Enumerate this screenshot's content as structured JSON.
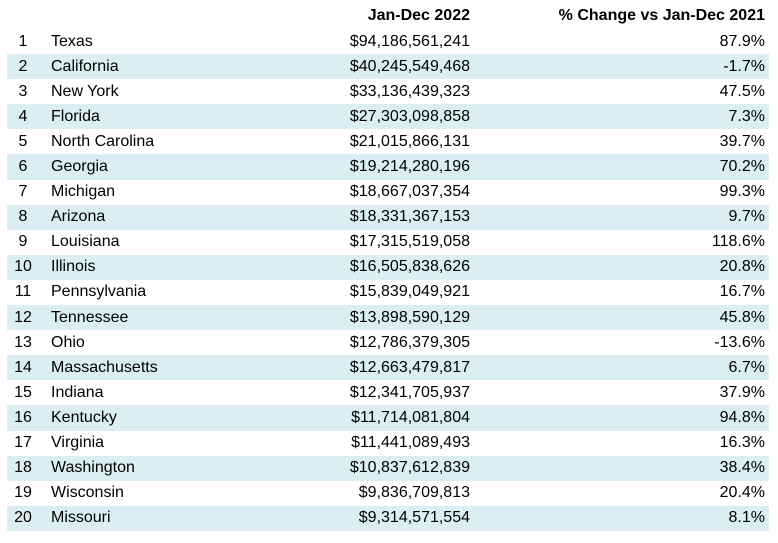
{
  "chart_data": {
    "type": "table",
    "columns": [
      "",
      "",
      "Jan-Dec 2022",
      "% Change vs Jan-Dec 2021"
    ],
    "rows": [
      {
        "rank": "1",
        "state": "Texas",
        "value": "$94,186,561,241",
        "change": "87.9%"
      },
      {
        "rank": "2",
        "state": "California",
        "value": "$40,245,549,468",
        "change": "-1.7%"
      },
      {
        "rank": "3",
        "state": "New York",
        "value": "$33,136,439,323",
        "change": "47.5%"
      },
      {
        "rank": "4",
        "state": "Florida",
        "value": "$27,303,098,858",
        "change": "7.3%"
      },
      {
        "rank": "5",
        "state": "North Carolina",
        "value": "$21,015,866,131",
        "change": "39.7%"
      },
      {
        "rank": "6",
        "state": "Georgia",
        "value": "$19,214,280,196",
        "change": "70.2%"
      },
      {
        "rank": "7",
        "state": "Michigan",
        "value": "$18,667,037,354",
        "change": "99.3%"
      },
      {
        "rank": "8",
        "state": "Arizona",
        "value": "$18,331,367,153",
        "change": "9.7%"
      },
      {
        "rank": "9",
        "state": "Louisiana",
        "value": "$17,315,519,058",
        "change": "118.6%"
      },
      {
        "rank": "10",
        "state": "Illinois",
        "value": "$16,505,838,626",
        "change": "20.8%"
      },
      {
        "rank": "11",
        "state": "Pennsylvania",
        "value": "$15,839,049,921",
        "change": "16.7%"
      },
      {
        "rank": "12",
        "state": "Tennessee",
        "value": "$13,898,590,129",
        "change": "45.8%"
      },
      {
        "rank": "13",
        "state": "Ohio",
        "value": "$12,786,379,305",
        "change": "-13.6%"
      },
      {
        "rank": "14",
        "state": "Massachusetts",
        "value": "$12,663,479,817",
        "change": "6.7%"
      },
      {
        "rank": "15",
        "state": "Indiana",
        "value": "$12,341,705,937",
        "change": "37.9%"
      },
      {
        "rank": "16",
        "state": "Kentucky",
        "value": "$11,714,081,804",
        "change": "94.8%"
      },
      {
        "rank": "17",
        "state": "Virginia",
        "value": "$11,441,089,493",
        "change": "16.3%"
      },
      {
        "rank": "18",
        "state": "Washington",
        "value": "$10,837,612,839",
        "change": "38.4%"
      },
      {
        "rank": "19",
        "state": "Wisconsin",
        "value": "$9,836,709,813",
        "change": "20.4%"
      },
      {
        "rank": "20",
        "state": "Missouri",
        "value": "$9,314,571,554",
        "change": "8.1%"
      }
    ],
    "stripe_color": "#daeef3",
    "text_color": "#000000",
    "background_color": "#ffffff"
  }
}
